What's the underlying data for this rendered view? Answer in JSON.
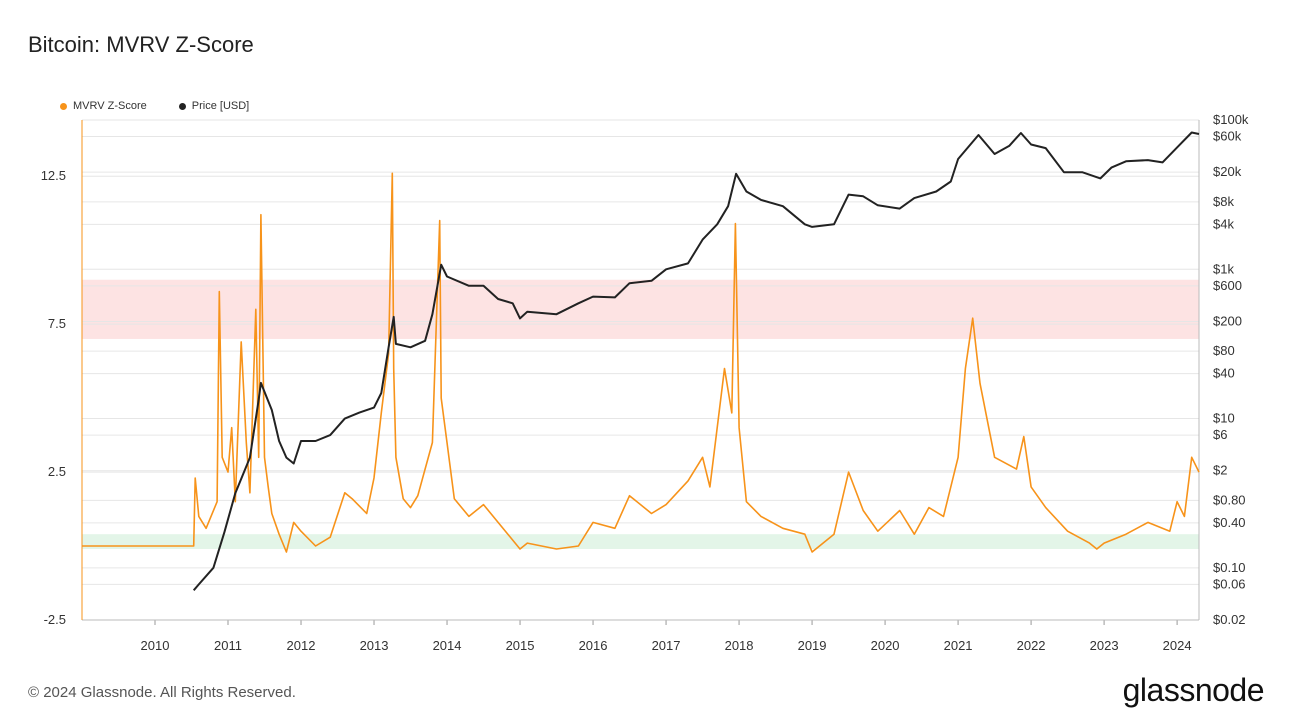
{
  "title": "Bitcoin: MVRV Z-Score",
  "footer": "© 2024 Glassnode. All Rights Reserved.",
  "brand": "glassnode",
  "colors": {
    "mvrv": "#f7931a",
    "price": "#222222",
    "red_band": "#fde3e3",
    "green_band": "#e3f5e8",
    "grid": "#e6e6e6"
  },
  "chart_data": {
    "type": "line",
    "title": "Bitcoin: MVRV Z-Score",
    "legend": [
      "MVRV Z-Score",
      "Price [USD]"
    ],
    "legend_position": "top-left",
    "grid": true,
    "x_ticks": [
      "2010",
      "2011",
      "2012",
      "2013",
      "2014",
      "2015",
      "2016",
      "2017",
      "2018",
      "2019",
      "2020",
      "2021",
      "2022",
      "2023",
      "2024"
    ],
    "x_range": [
      2009.0,
      2024.3
    ],
    "y_left": {
      "ticks": [
        "12.5",
        "7.5",
        "2.5",
        "-2.5"
      ],
      "tick_values": [
        12.5,
        7.5,
        2.5,
        -2.5
      ],
      "range": [
        -2.5,
        14.4
      ]
    },
    "y_right": {
      "scale": "log",
      "ticks": [
        "$100k",
        "$60k",
        "$20k",
        "$8k",
        "$4k",
        "$1k",
        "$600",
        "$200",
        "$80",
        "$40",
        "$10",
        "$6",
        "$2",
        "$0.80",
        "$0.40",
        "$0.10",
        "$0.06",
        "$0.02"
      ],
      "tick_values": [
        100000,
        60000,
        20000,
        8000,
        4000,
        1000,
        600,
        200,
        80,
        40,
        10,
        6,
        2,
        0.8,
        0.4,
        0.1,
        0.06,
        0.02
      ],
      "range": [
        0.02,
        100000
      ]
    },
    "bands": [
      {
        "name": "red",
        "from": 7.0,
        "to": 9.0
      },
      {
        "name": "green",
        "from": -0.1,
        "to": 0.4
      }
    ],
    "series": [
      {
        "name": "MVRV Z-Score",
        "axis": "left",
        "x": [
          2009.0,
          2010.53,
          2010.55,
          2010.6,
          2010.7,
          2010.85,
          2010.88,
          2010.92,
          2011.0,
          2011.05,
          2011.1,
          2011.18,
          2011.25,
          2011.3,
          2011.38,
          2011.42,
          2011.45,
          2011.5,
          2011.55,
          2011.6,
          2011.7,
          2011.8,
          2011.9,
          2012.0,
          2012.2,
          2012.4,
          2012.6,
          2012.7,
          2012.9,
          2013.0,
          2013.1,
          2013.2,
          2013.25,
          2013.27,
          2013.3,
          2013.4,
          2013.5,
          2013.6,
          2013.8,
          2013.9,
          2013.92,
          2014.0,
          2014.1,
          2014.3,
          2014.5,
          2014.7,
          2015.0,
          2015.1,
          2015.5,
          2015.8,
          2016.0,
          2016.3,
          2016.5,
          2016.8,
          2017.0,
          2017.3,
          2017.5,
          2017.6,
          2017.8,
          2017.9,
          2017.95,
          2018.0,
          2018.1,
          2018.3,
          2018.6,
          2018.9,
          2019.0,
          2019.3,
          2019.5,
          2019.7,
          2019.9,
          2020.2,
          2020.4,
          2020.6,
          2020.8,
          2021.0,
          2021.1,
          2021.2,
          2021.3,
          2021.5,
          2021.8,
          2021.9,
          2022.0,
          2022.2,
          2022.5,
          2022.8,
          2022.9,
          2023.0,
          2023.3,
          2023.6,
          2023.9,
          2024.0,
          2024.1,
          2024.2,
          2024.3
        ],
        "y": [
          0.0,
          0.0,
          2.3,
          1.0,
          0.6,
          1.5,
          8.6,
          3.0,
          2.5,
          4.0,
          1.5,
          6.9,
          3.5,
          1.8,
          8.0,
          3.0,
          11.2,
          3.0,
          2.0,
          1.1,
          0.4,
          -0.2,
          0.8,
          0.5,
          0.0,
          0.3,
          1.8,
          1.6,
          1.1,
          2.3,
          4.5,
          6.5,
          12.6,
          6.0,
          3.0,
          1.6,
          1.3,
          1.7,
          3.5,
          11.0,
          5.0,
          3.5,
          1.6,
          1.0,
          1.4,
          0.8,
          -0.1,
          0.1,
          -0.1,
          0.0,
          0.8,
          0.6,
          1.7,
          1.1,
          1.4,
          2.2,
          3.0,
          2.0,
          6.0,
          4.5,
          10.9,
          4.0,
          1.5,
          1.0,
          0.6,
          0.4,
          -0.2,
          0.4,
          2.5,
          1.2,
          0.5,
          1.2,
          0.4,
          1.3,
          1.0,
          3.0,
          6.0,
          7.7,
          5.5,
          3.0,
          2.6,
          3.7,
          2.0,
          1.3,
          0.5,
          0.1,
          -0.1,
          0.1,
          0.4,
          0.8,
          0.5,
          1.5,
          1.0,
          3.0,
          2.5
        ]
      },
      {
        "name": "Price [USD]",
        "axis": "right",
        "x": [
          2010.53,
          2010.6,
          2010.8,
          2010.95,
          2011.1,
          2011.3,
          2011.42,
          2011.45,
          2011.6,
          2011.7,
          2011.8,
          2011.9,
          2012.0,
          2012.2,
          2012.4,
          2012.6,
          2012.8,
          2013.0,
          2013.1,
          2013.2,
          2013.27,
          2013.3,
          2013.5,
          2013.7,
          2013.8,
          2013.92,
          2014.0,
          2014.3,
          2014.5,
          2014.7,
          2014.9,
          2015.0,
          2015.1,
          2015.5,
          2015.8,
          2016.0,
          2016.3,
          2016.5,
          2016.8,
          2017.0,
          2017.3,
          2017.5,
          2017.7,
          2017.85,
          2017.96,
          2018.1,
          2018.3,
          2018.6,
          2018.9,
          2019.0,
          2019.3,
          2019.5,
          2019.7,
          2019.9,
          2020.2,
          2020.4,
          2020.7,
          2020.9,
          2021.0,
          2021.28,
          2021.5,
          2021.7,
          2021.86,
          2022.0,
          2022.2,
          2022.45,
          2022.7,
          2022.95,
          2023.1,
          2023.3,
          2023.6,
          2023.8,
          2024.0,
          2024.2,
          2024.3
        ],
        "y": [
          0.05,
          0.06,
          0.1,
          0.3,
          1.0,
          3.0,
          18,
          30,
          13,
          5,
          3,
          2.5,
          5,
          5,
          6,
          10,
          12,
          14,
          22,
          90,
          230,
          100,
          90,
          110,
          250,
          1150,
          800,
          600,
          600,
          400,
          350,
          220,
          270,
          250,
          350,
          430,
          420,
          650,
          700,
          1000,
          1200,
          2500,
          4000,
          7000,
          19000,
          11000,
          8500,
          7000,
          4000,
          3700,
          4000,
          10000,
          9500,
          7200,
          6500,
          9000,
          11000,
          15000,
          30000,
          63000,
          35000,
          45000,
          67000,
          47000,
          42000,
          20000,
          20000,
          16500,
          23000,
          28000,
          29000,
          27000,
          43000,
          68000,
          65000
        ]
      }
    ]
  }
}
